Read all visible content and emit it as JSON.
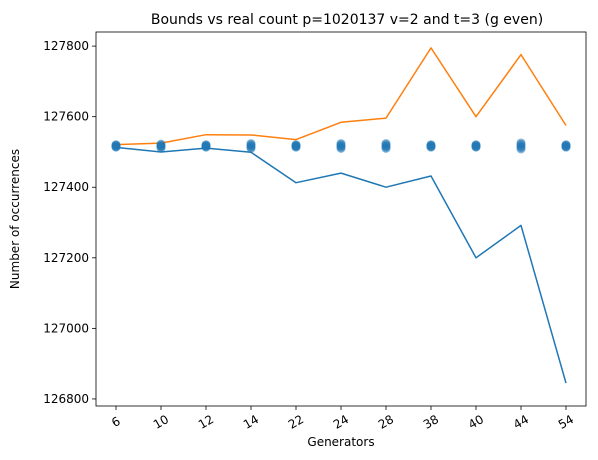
{
  "chart_data": {
    "type": "line",
    "title": "Bounds vs real count p=1020137 v=2 and t=3 (g even)",
    "xlabel": "Generators",
    "ylabel": "Number of occurrences",
    "categories": [
      "6",
      "10",
      "12",
      "14",
      "22",
      "24",
      "28",
      "38",
      "40",
      "44",
      "54"
    ],
    "ylim": [
      126780,
      127840
    ],
    "yticks": [
      126800,
      127000,
      127200,
      127400,
      127600,
      127800
    ],
    "grid": false,
    "series": [
      {
        "kind": "line",
        "color": "#1f77b4",
        "values": [
          127513,
          127500,
          127511,
          127499,
          127413,
          127440,
          127400,
          127432,
          127200,
          127292,
          126845
        ]
      },
      {
        "kind": "line",
        "color": "#ff7f0e",
        "values": [
          127521,
          127525,
          127549,
          127548,
          127535,
          127584,
          127596,
          127795,
          127600,
          127776,
          127575
        ]
      },
      {
        "kind": "scatter",
        "color": "#1f77b4",
        "values": [
          127517,
          127517,
          127517,
          127517,
          127517,
          127517,
          127517,
          127517,
          127517,
          127517,
          127517
        ],
        "spread": [
          2,
          3,
          2,
          4,
          2,
          4,
          4,
          2,
          2,
          5,
          2
        ]
      }
    ]
  }
}
